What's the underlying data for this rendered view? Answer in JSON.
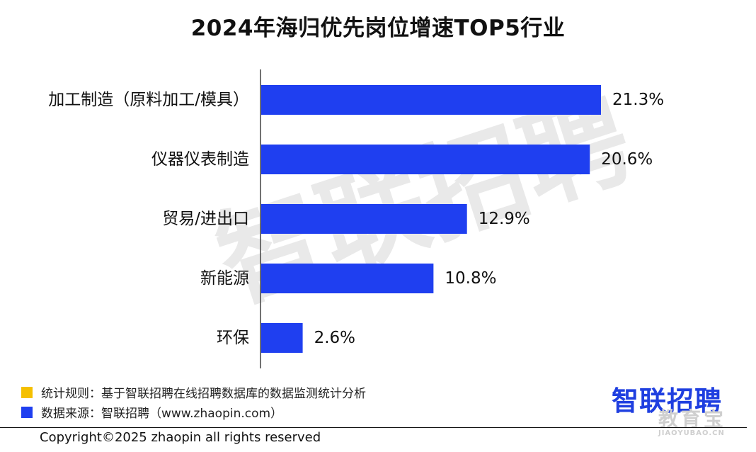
{
  "chart_data": {
    "type": "bar",
    "orientation": "horizontal",
    "title": "2024年海归优先岗位增速TOP5行业",
    "categories": [
      "加工制造（原料加工/模具）",
      "仪器仪表制造",
      "贸易/进出口",
      "新能源",
      "环保"
    ],
    "values": [
      21.3,
      20.6,
      12.9,
      10.8,
      2.6
    ],
    "value_labels": [
      "21.3%",
      "20.6%",
      "12.9%",
      "10.8%",
      "2.6%"
    ],
    "xlim": [
      0,
      21.3
    ],
    "grid": false,
    "bar_color": "#1f3ff0"
  },
  "watermark": "智联招聘",
  "legend": [
    {
      "text": "统计规则：基于智联招聘在线招聘数据库的数据监测统计分析",
      "color": "#f5c000"
    },
    {
      "text": "数据来源：智联招聘（www.zhaopin.com）",
      "color": "#1f3ff0"
    }
  ],
  "brand_logo": "智联招聘",
  "corner_mark": {
    "text": "教育宝",
    "subtext": "JIAOYUBAO.CN"
  },
  "footer": {
    "copyright": "Copyright©2025 zhaopin all rights reserved"
  }
}
